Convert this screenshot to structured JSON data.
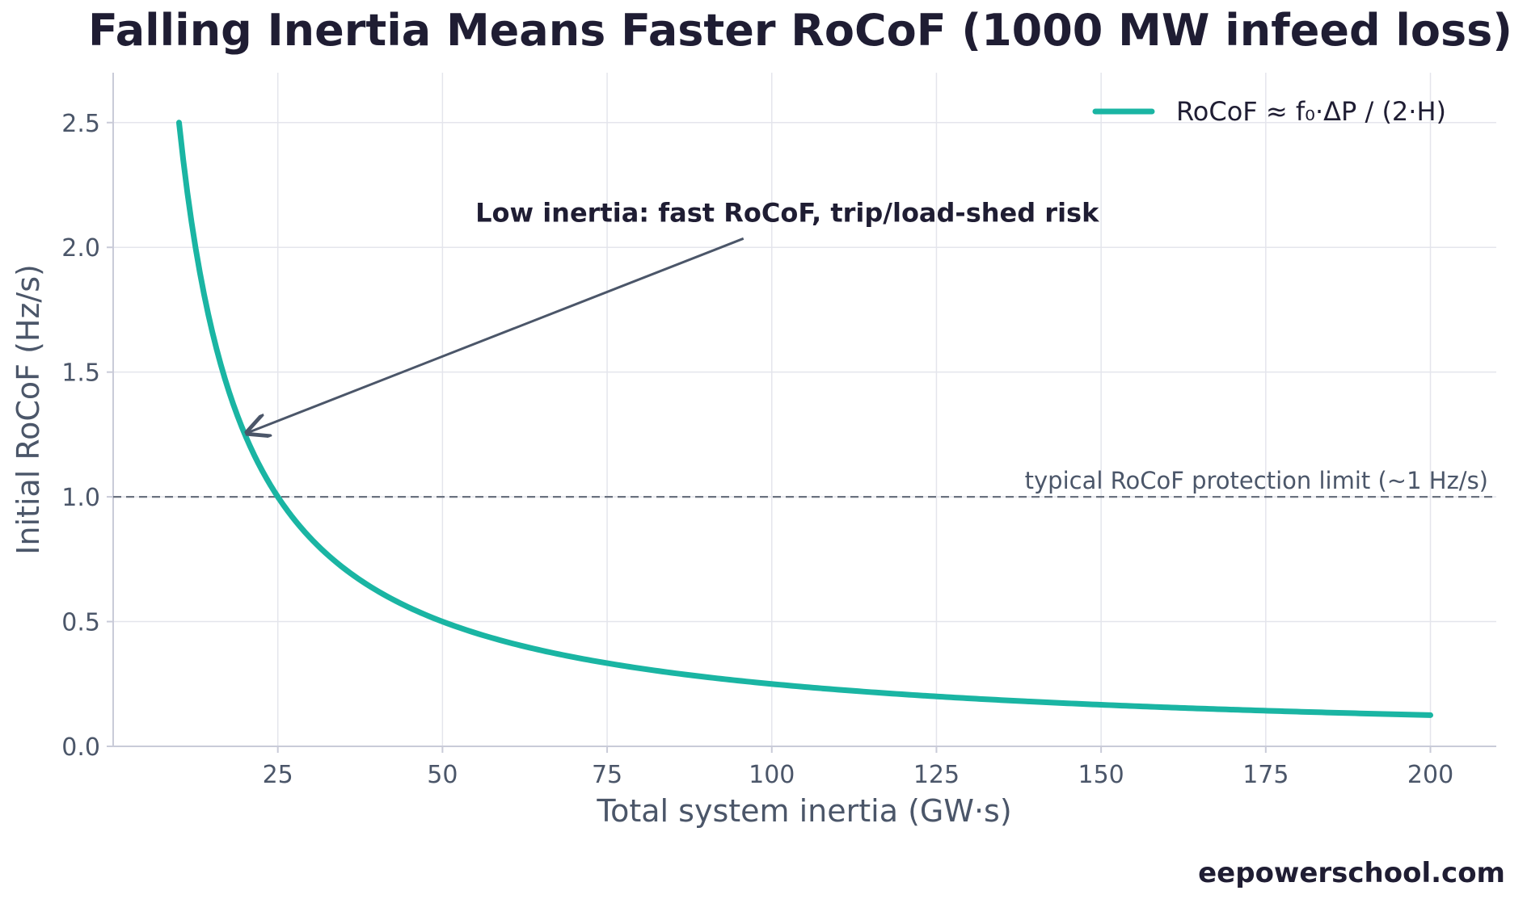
{
  "chart_data": {
    "type": "line",
    "title": "Falling Inertia Means Faster RoCoF (1000 MW infeed loss)",
    "xlabel": "Total system inertia (GW·s)",
    "ylabel": "Initial RoCoF (Hz/s)",
    "xlim": [
      0,
      210
    ],
    "ylim": [
      0,
      2.7
    ],
    "xticks": [
      25,
      50,
      75,
      100,
      125,
      150,
      175,
      200
    ],
    "yticks": [
      0.0,
      0.5,
      1.0,
      1.5,
      2.0,
      2.5
    ],
    "xtick_labels": [
      "25",
      "50",
      "75",
      "100",
      "125",
      "150",
      "175",
      "200"
    ],
    "ytick_labels": [
      "0.0",
      "0.5",
      "1.0",
      "1.5",
      "2.0",
      "2.5"
    ],
    "grid": true,
    "legend_position": "top-right",
    "series": [
      {
        "name": "RoCoF ≈ f₀·ΔP / (2·H)",
        "color": "#1ab5a3",
        "x": [
          10,
          12,
          14,
          16,
          18,
          20,
          22,
          25,
          30,
          35,
          40,
          45,
          50,
          60,
          75,
          90,
          100,
          125,
          150,
          175,
          200
        ],
        "y": [
          2.5,
          2.083,
          1.786,
          1.563,
          1.389,
          1.25,
          1.136,
          1.0,
          0.833,
          0.714,
          0.625,
          0.556,
          0.5,
          0.417,
          0.333,
          0.278,
          0.25,
          0.2,
          0.167,
          0.143,
          0.125
        ]
      }
    ],
    "reference_line": {
      "y": 1.0,
      "label": "typical RoCoF protection limit (~1 Hz/s)",
      "color": "#6b7280"
    },
    "annotation": {
      "text": "Low inertia: fast RoCoF, trip/load-shed risk",
      "point": [
        20,
        1.25
      ],
      "text_at": [
        55,
        2.1
      ]
    },
    "watermark": "eepowerschool.com"
  }
}
